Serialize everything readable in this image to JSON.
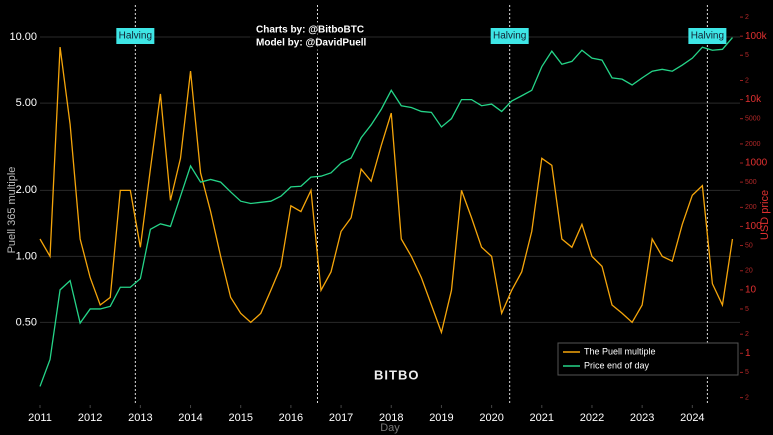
{
  "chart_data": {
    "type": "line",
    "credits": [
      "Charts by: @BitboBTC",
      "Model by: @DavidPuell"
    ],
    "logo": "BITBO",
    "xlabel": "Day",
    "ylabel": "Puell 365 multiple",
    "y2label": "USD price",
    "xlim": [
      2011,
      2024.95
    ],
    "xticks": [
      2011,
      2012,
      2013,
      2014,
      2015,
      2016,
      2017,
      2018,
      2019,
      2020,
      2021,
      2022,
      2023,
      2024
    ],
    "ylim": [
      0.21,
      14
    ],
    "log": true,
    "yticks": [
      {
        "value": 0.5,
        "label": "0.50"
      },
      {
        "value": 1,
        "label": "1.00"
      },
      {
        "value": 2,
        "label": "2.00"
      },
      {
        "value": 5,
        "label": "5.00"
      },
      {
        "value": 10,
        "label": "10.00"
      }
    ],
    "y2lim": [
      0.153,
      310000
    ],
    "y2ticks": [
      {
        "value": 0.2,
        "label": "2"
      },
      {
        "value": 0.5,
        "label": "5"
      },
      1,
      2,
      5,
      10,
      20,
      50,
      100,
      200,
      500,
      1000,
      2000,
      5000,
      {
        "value": 10000,
        "label": "10k"
      },
      {
        "value": 20000,
        "label": "2"
      },
      {
        "value": 50000,
        "label": "5"
      },
      {
        "value": 100000,
        "label": "100k"
      },
      {
        "value": 200000,
        "label": "2"
      }
    ],
    "grid": true,
    "legend": "bottom-right",
    "halvings": [
      {
        "x": 2012.9,
        "label": "Halving"
      },
      {
        "x": 2016.53
      },
      {
        "x": 2020.36,
        "label": "Halving"
      },
      {
        "x": 2024.3,
        "label": "Halving"
      }
    ],
    "x": [
      2011.0,
      2011.2,
      2011.4,
      2011.6,
      2011.8,
      2012.0,
      2012.2,
      2012.4,
      2012.6,
      2012.8,
      2013.0,
      2013.2,
      2013.4,
      2013.6,
      2013.8,
      2014.0,
      2014.2,
      2014.4,
      2014.6,
      2014.8,
      2015.0,
      2015.2,
      2015.4,
      2015.6,
      2015.8,
      2016.0,
      2016.2,
      2016.4,
      2016.6,
      2016.8,
      2017.0,
      2017.2,
      2017.4,
      2017.6,
      2017.8,
      2018.0,
      2018.2,
      2018.4,
      2018.6,
      2018.8,
      2019.0,
      2019.2,
      2019.4,
      2019.6,
      2019.8,
      2020.0,
      2020.2,
      2020.4,
      2020.6,
      2020.8,
      2021.0,
      2021.2,
      2021.4,
      2021.6,
      2021.8,
      2022.0,
      2022.2,
      2022.4,
      2022.6,
      2022.8,
      2023.0,
      2023.2,
      2023.4,
      2023.6,
      2023.8,
      2024.0,
      2024.2,
      2024.4,
      2024.6,
      2024.8
    ],
    "series": [
      {
        "name": "The Puell multiple",
        "color": "#f5a50a",
        "values": [
          1.2,
          1.0,
          9,
          4,
          1.2,
          0.8,
          0.6,
          0.65,
          2.0,
          2.0,
          1.1,
          2.5,
          5.5,
          1.8,
          2.8,
          7,
          2.4,
          1.6,
          1.0,
          0.65,
          0.55,
          0.5,
          0.55,
          0.7,
          0.9,
          1.7,
          1.6,
          2.0,
          0.7,
          0.85,
          1.3,
          1.5,
          2.5,
          2.2,
          3.2,
          4.5,
          1.2,
          1.0,
          0.8,
          0.6,
          0.45,
          0.7,
          2.0,
          1.5,
          1.1,
          1.0,
          0.55,
          0.7,
          0.85,
          1.3,
          2.8,
          2.6,
          1.2,
          1.1,
          1.4,
          1.0,
          0.9,
          0.6,
          0.55,
          0.5,
          0.6,
          1.2,
          1.0,
          0.95,
          1.4,
          1.9,
          2.1,
          0.75,
          0.6,
          1.2
        ]
      },
      {
        "name": "Price end of day",
        "color": "#25d488",
        "axis": "y2",
        "values": [
          0.3,
          0.8,
          10,
          14,
          3,
          5,
          5,
          5.5,
          11,
          11,
          15,
          90,
          110,
          100,
          300,
          900,
          500,
          550,
          500,
          350,
          250,
          230,
          240,
          250,
          300,
          420,
          430,
          600,
          620,
          700,
          1000,
          1200,
          2500,
          4000,
          7000,
          14000,
          8000,
          7500,
          6500,
          6300,
          3700,
          5000,
          10000,
          10000,
          8000,
          8500,
          6500,
          9500,
          11500,
          14000,
          33000,
          58000,
          36000,
          40000,
          60000,
          45000,
          42000,
          22000,
          21000,
          17000,
          22000,
          28000,
          30000,
          28000,
          35000,
          45000,
          67000,
          60000,
          62000,
          95000
        ]
      }
    ]
  }
}
